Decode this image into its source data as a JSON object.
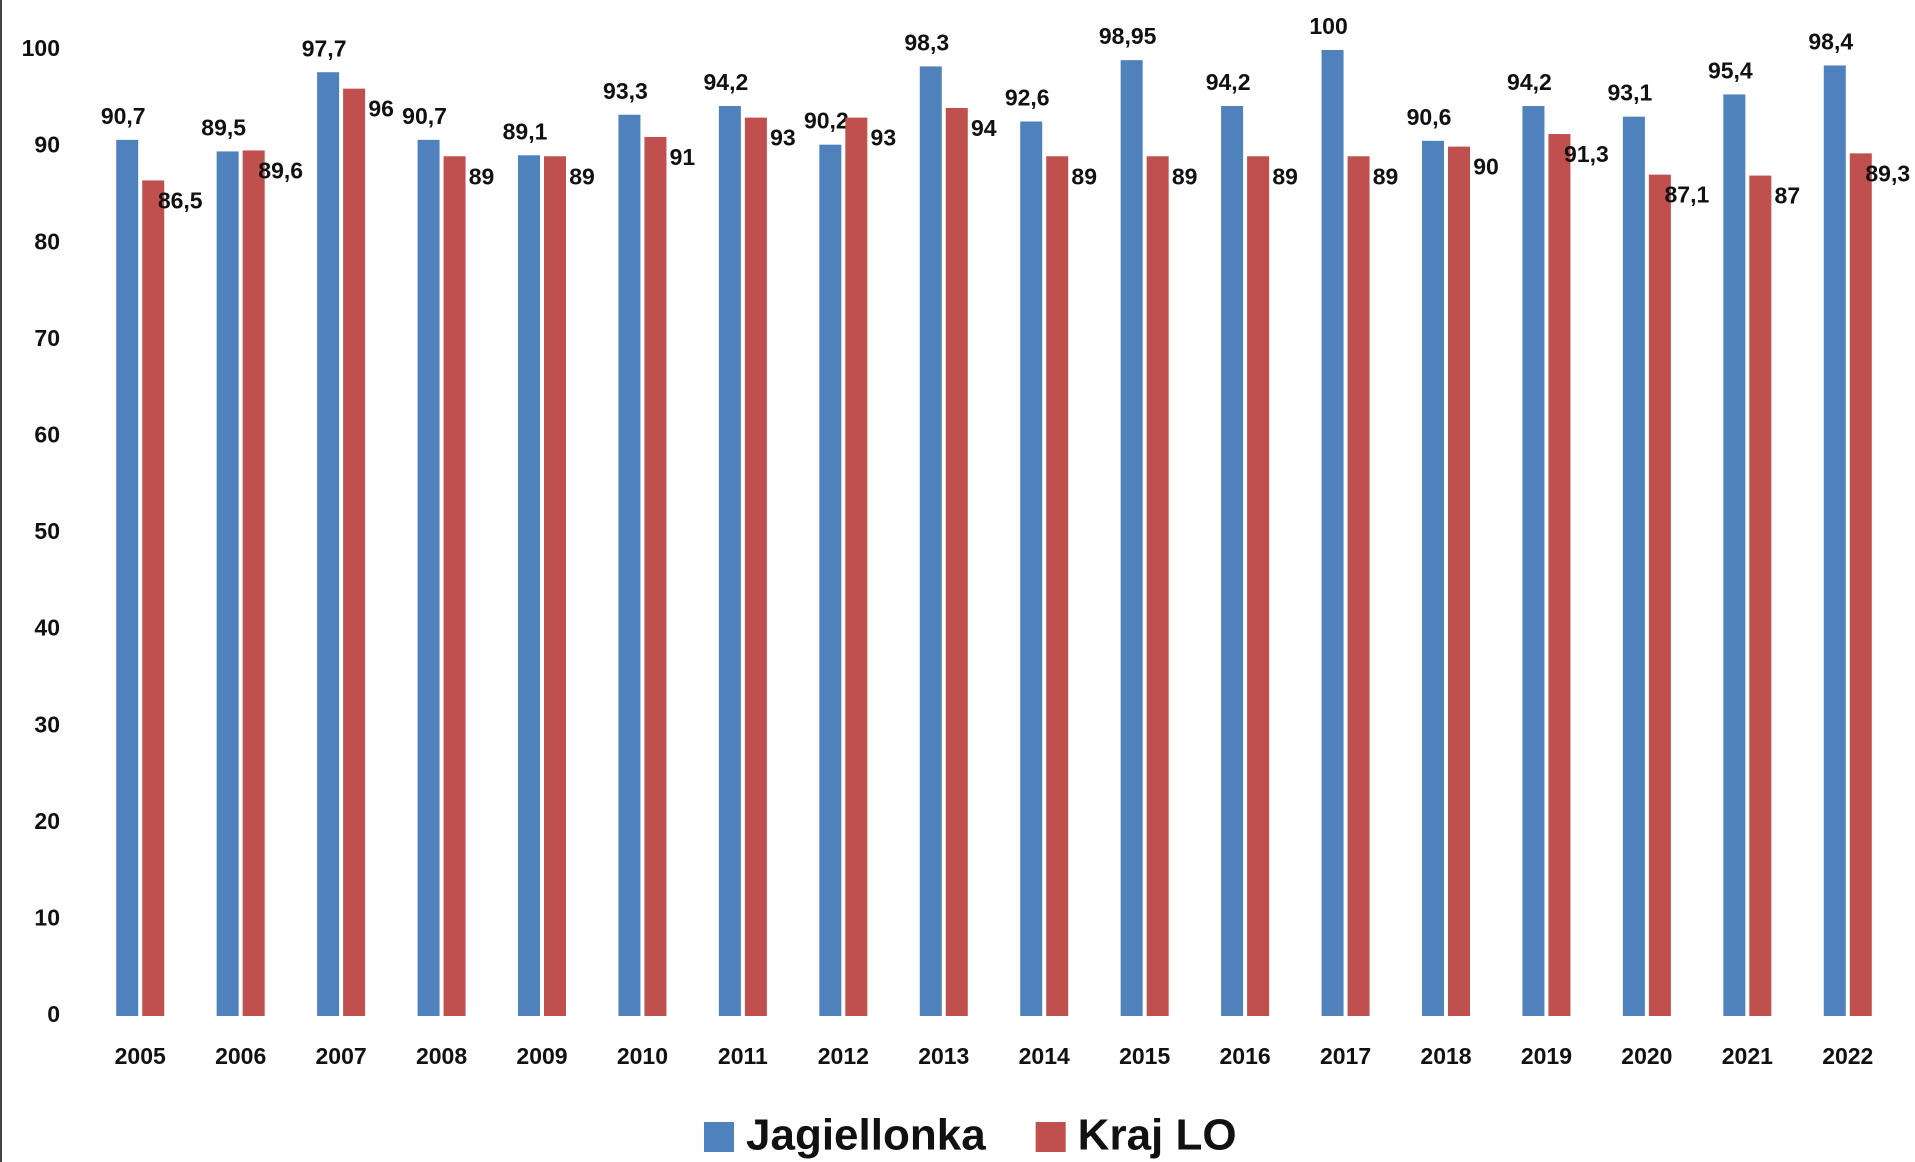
{
  "chart_data": {
    "type": "bar",
    "categories": [
      "2005",
      "2006",
      "2007",
      "2008",
      "2009",
      "2010",
      "2011",
      "2012",
      "2013",
      "2014",
      "2015",
      "2016",
      "2017",
      "2018",
      "2019",
      "2020",
      "2021",
      "2022"
    ],
    "series": [
      {
        "name": "Jagiellonka",
        "color": "#4f81bd",
        "values": [
          90.7,
          89.5,
          97.7,
          90.7,
          89.1,
          93.3,
          94.2,
          90.2,
          98.3,
          92.6,
          98.95,
          94.2,
          100,
          90.6,
          94.2,
          93.1,
          95.4,
          98.4
        ],
        "value_labels": [
          "90,7",
          "89,5",
          "97,7",
          "90,7",
          "89,1",
          "93,3",
          "94,2",
          "90,2",
          "98,3",
          "92,6",
          "98,95",
          "94,2",
          "100",
          "90,6",
          "94,2",
          "93,1",
          "95,4",
          "98,4"
        ]
      },
      {
        "name": "Kraj LO",
        "color": "#c0504d",
        "values": [
          86.5,
          89.6,
          96,
          89,
          89,
          91,
          93,
          93,
          94,
          89,
          89,
          89,
          89,
          90,
          91.3,
          87.1,
          87,
          89.3
        ],
        "value_labels": [
          "86,5",
          "89,6",
          "96",
          "89",
          "89",
          "91",
          "93",
          "93",
          "94",
          "89",
          "89",
          "89",
          "89",
          "90",
          "91,3",
          "87,1",
          "87",
          "89,3"
        ]
      }
    ],
    "ylim": [
      0,
      100
    ],
    "yticks": [
      0,
      10,
      20,
      30,
      40,
      50,
      60,
      70,
      80,
      90,
      100
    ],
    "grid": false
  }
}
